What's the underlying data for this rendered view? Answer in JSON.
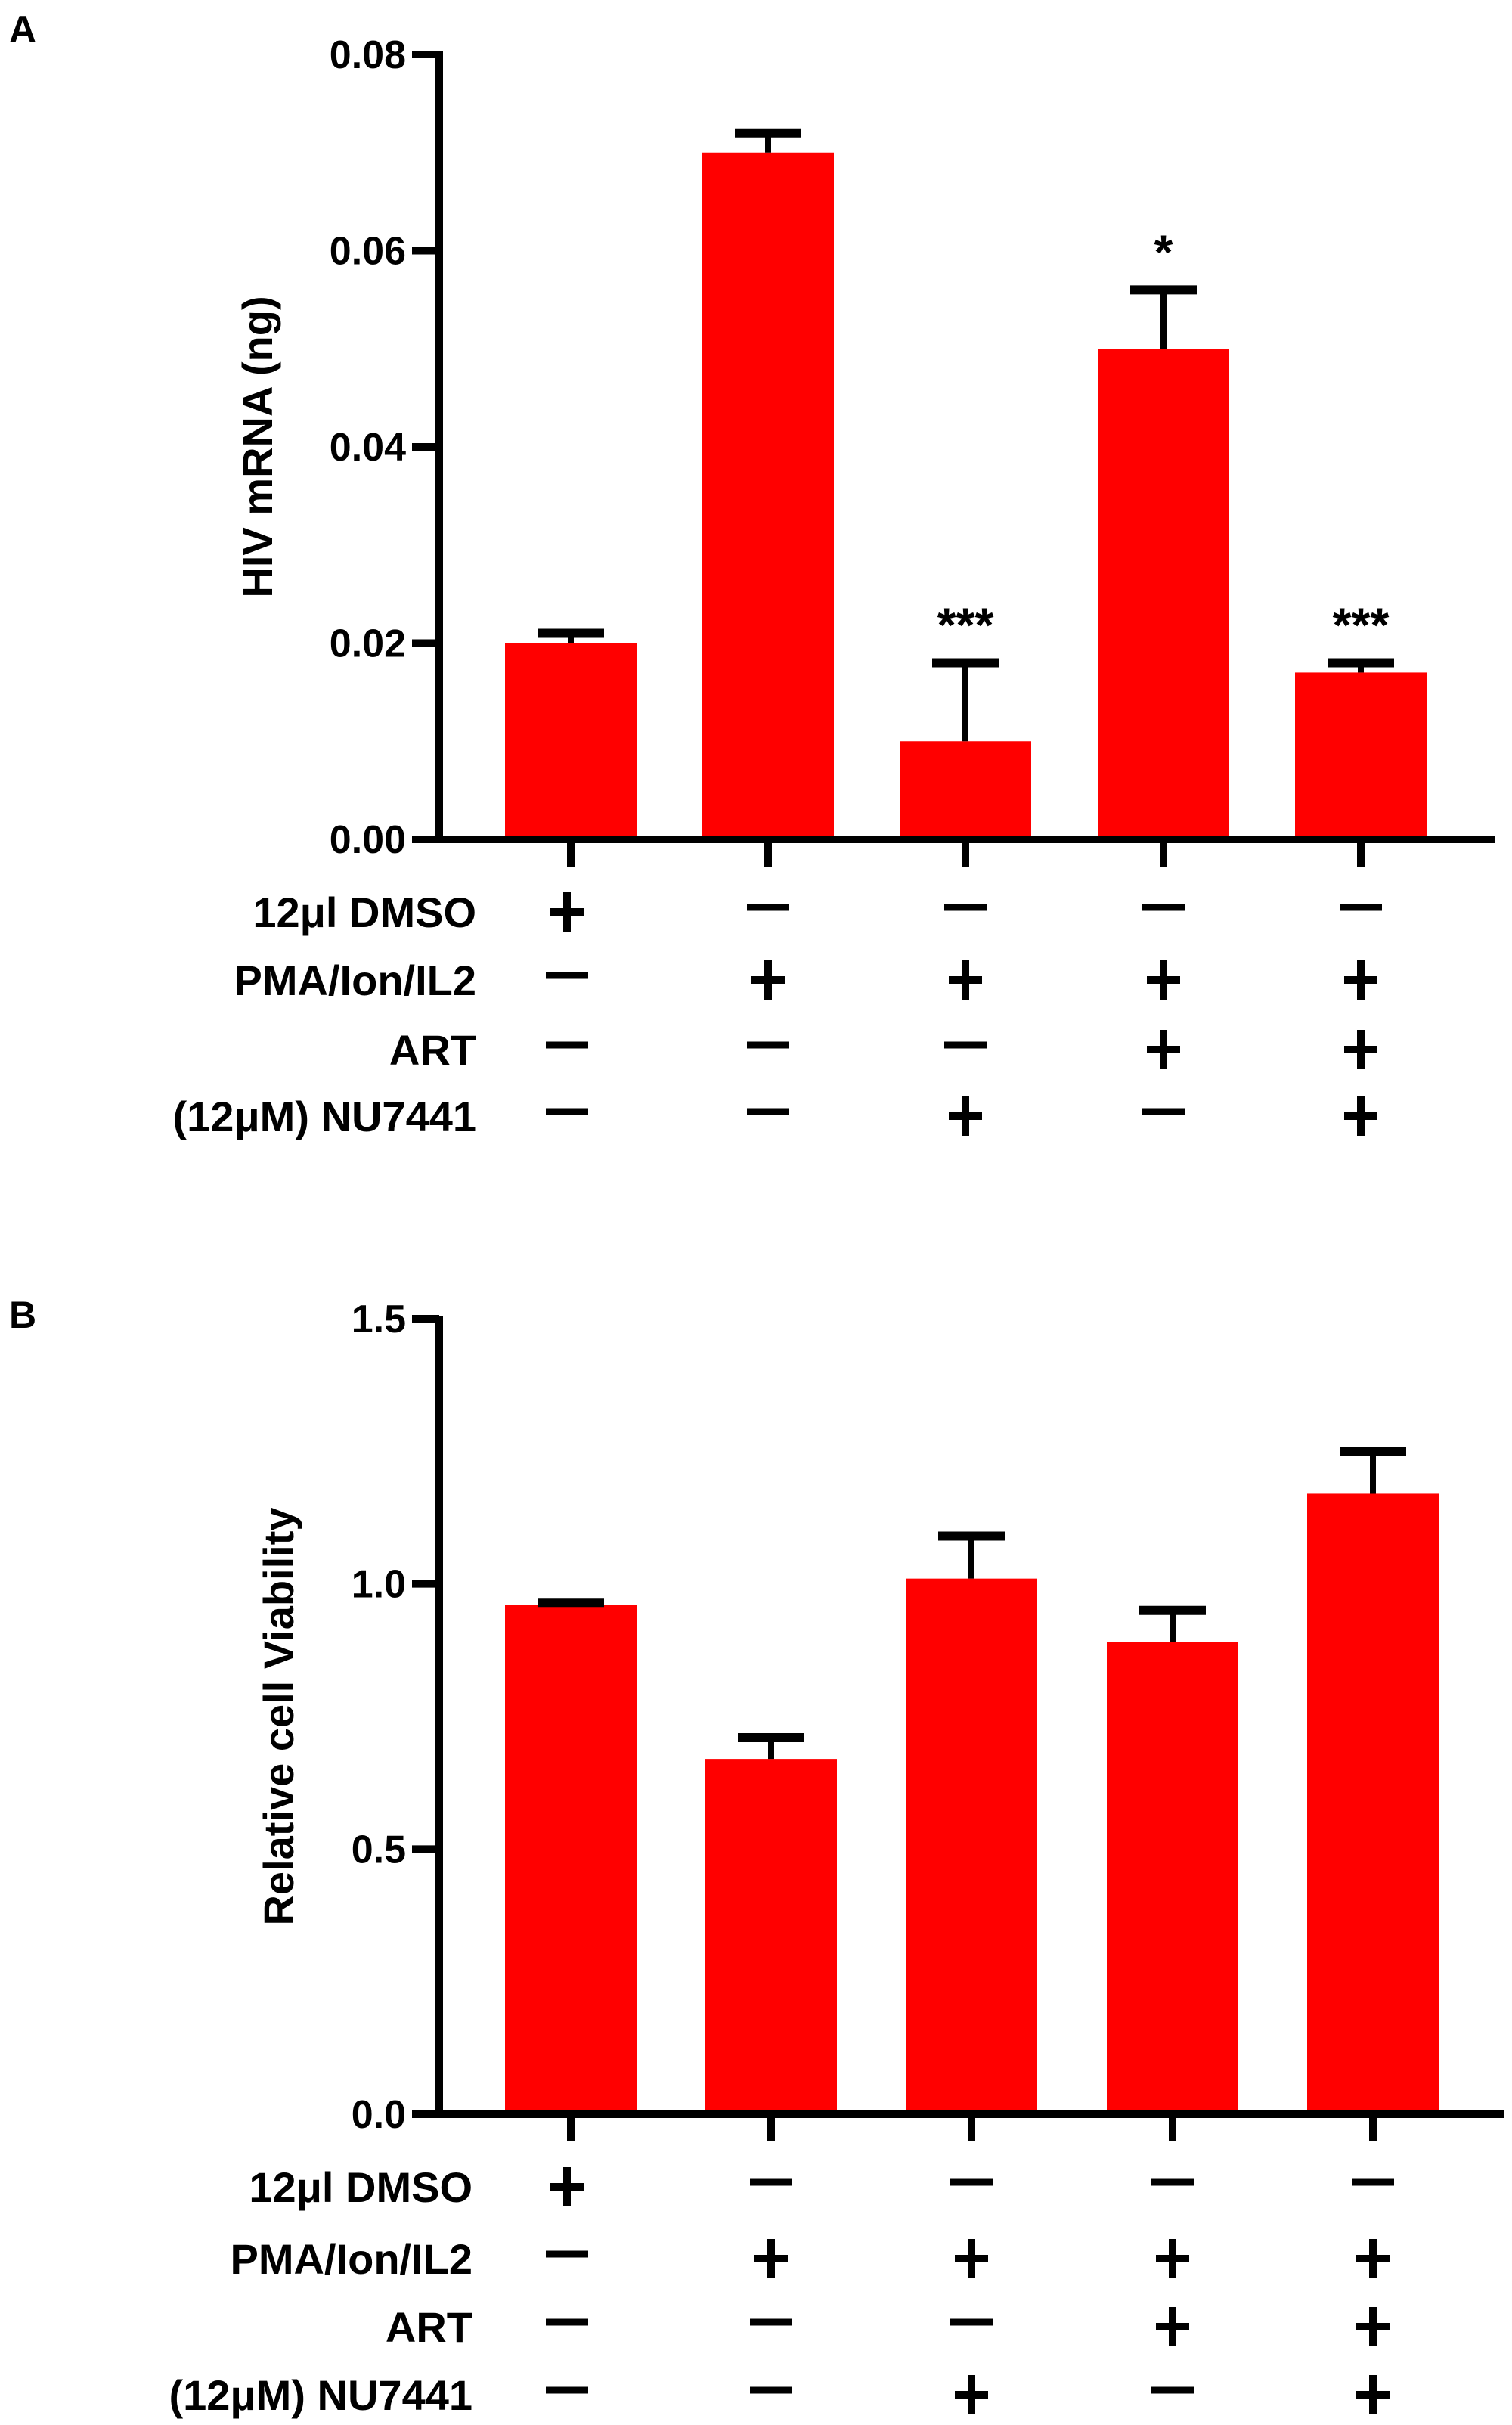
{
  "colors": {
    "bar": "#ff0000",
    "axis": "#000000"
  },
  "conditions": {
    "labels": [
      "12μl DMSO",
      "PMA/Ion/IL2",
      "ART",
      "(12μM) NU7441"
    ],
    "matrix": [
      [
        "+",
        "—",
        "—",
        "—",
        "—"
      ],
      [
        "—",
        "+",
        "+",
        "+",
        "+"
      ],
      [
        "—",
        "—",
        "—",
        "+",
        "+"
      ],
      [
        "—",
        "—",
        "+",
        "—",
        "+"
      ]
    ]
  },
  "chart_data": [
    {
      "panel": "A",
      "type": "bar",
      "ylabel": "HIV mRNA (ng)",
      "ylim": [
        0,
        0.08
      ],
      "yticks": [
        "0.00",
        "0.02",
        "0.04",
        "0.06",
        "0.08"
      ],
      "ytick_values": [
        0,
        0.02,
        0.04,
        0.06,
        0.08
      ],
      "values": [
        0.02,
        0.07,
        0.01,
        0.05,
        0.017
      ],
      "error_upper": [
        0.021,
        0.072,
        0.018,
        0.056,
        0.018
      ],
      "annotations": [
        "",
        "",
        "***",
        "*",
        "***"
      ]
    },
    {
      "panel": "B",
      "type": "bar",
      "ylabel": "Relative cell Viability",
      "ylim": [
        0,
        1.5
      ],
      "yticks": [
        "0.0",
        "0.5",
        "1.0",
        "1.5"
      ],
      "ytick_values": [
        0,
        0.5,
        1.0,
        1.5
      ],
      "values": [
        0.96,
        0.67,
        1.01,
        0.89,
        1.17
      ],
      "error_upper": [
        0.965,
        0.71,
        1.09,
        0.95,
        1.25
      ],
      "annotations": [
        "",
        "",
        "",
        "",
        ""
      ]
    }
  ]
}
